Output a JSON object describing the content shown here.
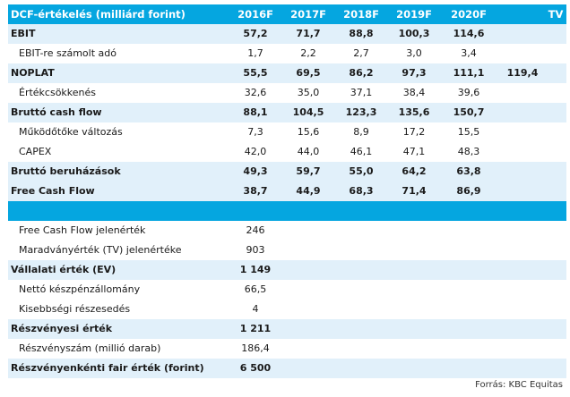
{
  "header": {
    "title": "DCF-értékelés (milliárd forint)",
    "columns": [
      "2016F",
      "2017F",
      "2018F",
      "2019F",
      "2020F",
      "TV"
    ]
  },
  "rows": [
    {
      "label": "EBIT",
      "values": [
        "57,2",
        "71,7",
        "88,8",
        "100,3",
        "114,6",
        ""
      ],
      "bold": true,
      "band": true,
      "indent": false
    },
    {
      "label": "EBIT-re számolt adó",
      "values": [
        "1,7",
        "2,2",
        "2,7",
        "3,0",
        "3,4",
        ""
      ],
      "bold": false,
      "band": false,
      "indent": true
    },
    {
      "label": "NOPLAT",
      "values": [
        "55,5",
        "69,5",
        "86,2",
        "97,3",
        "111,1",
        "119,4"
      ],
      "bold": true,
      "band": true,
      "indent": false
    },
    {
      "label": "Értékcsökkenés",
      "values": [
        "32,6",
        "35,0",
        "37,1",
        "38,4",
        "39,6",
        ""
      ],
      "bold": false,
      "band": false,
      "indent": true
    },
    {
      "label": "Bruttó cash flow",
      "values": [
        "88,1",
        "104,5",
        "123,3",
        "135,6",
        "150,7",
        ""
      ],
      "bold": true,
      "band": true,
      "indent": false
    },
    {
      "label": "Működőtőke változás",
      "values": [
        "7,3",
        "15,6",
        "8,9",
        "17,2",
        "15,5",
        ""
      ],
      "bold": false,
      "band": false,
      "indent": true
    },
    {
      "label": "CAPEX",
      "values": [
        "42,0",
        "44,0",
        "46,1",
        "47,1",
        "48,3",
        ""
      ],
      "bold": false,
      "band": false,
      "indent": true
    },
    {
      "label": "Bruttó beruházások",
      "values": [
        "49,3",
        "59,7",
        "55,0",
        "64,2",
        "63,8",
        ""
      ],
      "bold": true,
      "band": true,
      "indent": false
    },
    {
      "label": "Free Cash Flow",
      "values": [
        "38,7",
        "44,9",
        "68,3",
        "71,4",
        "86,9",
        ""
      ],
      "bold": true,
      "band": true,
      "indent": false
    }
  ],
  "valuation": [
    {
      "label": "Free Cash Flow jelenérték",
      "value": "246",
      "bold": false,
      "band": false,
      "indent": true
    },
    {
      "label": "Maradványérték (TV) jelenértéke",
      "value": "903",
      "bold": false,
      "band": false,
      "indent": true
    },
    {
      "label": "Vállalati érték (EV)",
      "value": "1 149",
      "bold": true,
      "band": true,
      "indent": false
    },
    {
      "label": "Nettó készpénzállomány",
      "value": "66,5",
      "bold": false,
      "band": false,
      "indent": true
    },
    {
      "label": "Kisebbségi részesedés",
      "value": "4",
      "bold": false,
      "band": false,
      "indent": true
    },
    {
      "label": "Részvényesi érték",
      "value": "1 211",
      "bold": true,
      "band": true,
      "indent": false
    },
    {
      "label": "Részvényszám (millió darab)",
      "value": "186,4",
      "bold": false,
      "band": false,
      "indent": true
    },
    {
      "label": "Részvényenkénti fair érték (forint)",
      "value": "6 500",
      "bold": true,
      "band": true,
      "indent": false
    }
  ],
  "source": "Forrás: KBC Equitas",
  "colors": {
    "header_bg": "#05a6e0",
    "band_bg": "#e1f0fa",
    "header_text": "#ffffff"
  }
}
